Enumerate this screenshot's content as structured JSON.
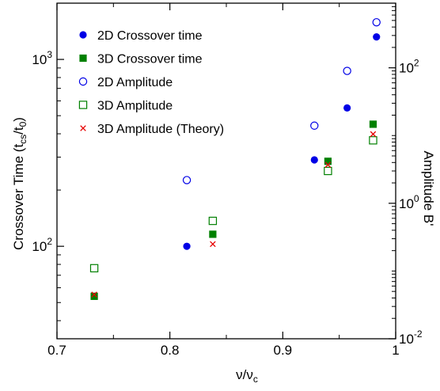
{
  "chart_data": {
    "type": "scatter",
    "xlabel": "ν/ν",
    "xlabel_sub": "c",
    "ylabel_left": {
      "main": "Crossover Time (t",
      "sub1": "cs",
      "mid": "/t",
      "sub2": "0",
      "end": ")"
    },
    "ylabel_right": "Amplitude B'",
    "x_axis": {
      "range": [
        0.7,
        1.0
      ],
      "ticks": [
        "0.7",
        "0.8",
        "0.9",
        "1"
      ]
    },
    "y_left": {
      "scale": "log",
      "range": [
        32,
        2000
      ],
      "ticks": [
        {
          "base": "10",
          "exp": "2",
          "value": 100
        },
        {
          "base": "10",
          "exp": "3",
          "value": 1000
        }
      ]
    },
    "y_right": {
      "scale": "log",
      "range": [
        0.01,
        900
      ],
      "ticks": [
        {
          "base": "10",
          "exp": "-2",
          "value": 0.01
        },
        {
          "base": "10",
          "exp": "0",
          "value": 1
        },
        {
          "base": "10",
          "exp": "2",
          "value": 100
        }
      ]
    },
    "legend_position": "top-left",
    "series": [
      {
        "name": "2D Crossover time",
        "axis": "left",
        "marker": "filled-circle",
        "color": "#0000e6",
        "points": [
          [
            0.815,
            100
          ],
          [
            0.928,
            290
          ],
          [
            0.957,
            550
          ],
          [
            0.983,
            1320
          ]
        ]
      },
      {
        "name": "3D Crossover time",
        "axis": "left",
        "marker": "filled-square",
        "color": "#008000",
        "points": [
          [
            0.733,
            54
          ],
          [
            0.838,
            116
          ],
          [
            0.94,
            285
          ],
          [
            0.98,
            450
          ]
        ]
      },
      {
        "name": "2D Amplitude",
        "axis": "right",
        "marker": "open-circle",
        "color": "#0000e6",
        "points": [
          [
            0.815,
            2.2
          ],
          [
            0.928,
            14
          ],
          [
            0.957,
            90
          ],
          [
            0.983,
            470
          ]
        ]
      },
      {
        "name": "3D Amplitude",
        "axis": "right",
        "marker": "open-square",
        "color": "#008000",
        "points": [
          [
            0.733,
            0.11
          ],
          [
            0.838,
            0.55
          ],
          [
            0.94,
            3.0
          ],
          [
            0.98,
            8.5
          ]
        ]
      },
      {
        "name": "3D Amplitude (Theory)",
        "axis": "right",
        "marker": "x",
        "color": "#e60000",
        "points": [
          [
            0.733,
            0.045
          ],
          [
            0.838,
            0.25
          ],
          [
            0.94,
            3.7
          ],
          [
            0.98,
            10.5
          ]
        ]
      }
    ]
  }
}
